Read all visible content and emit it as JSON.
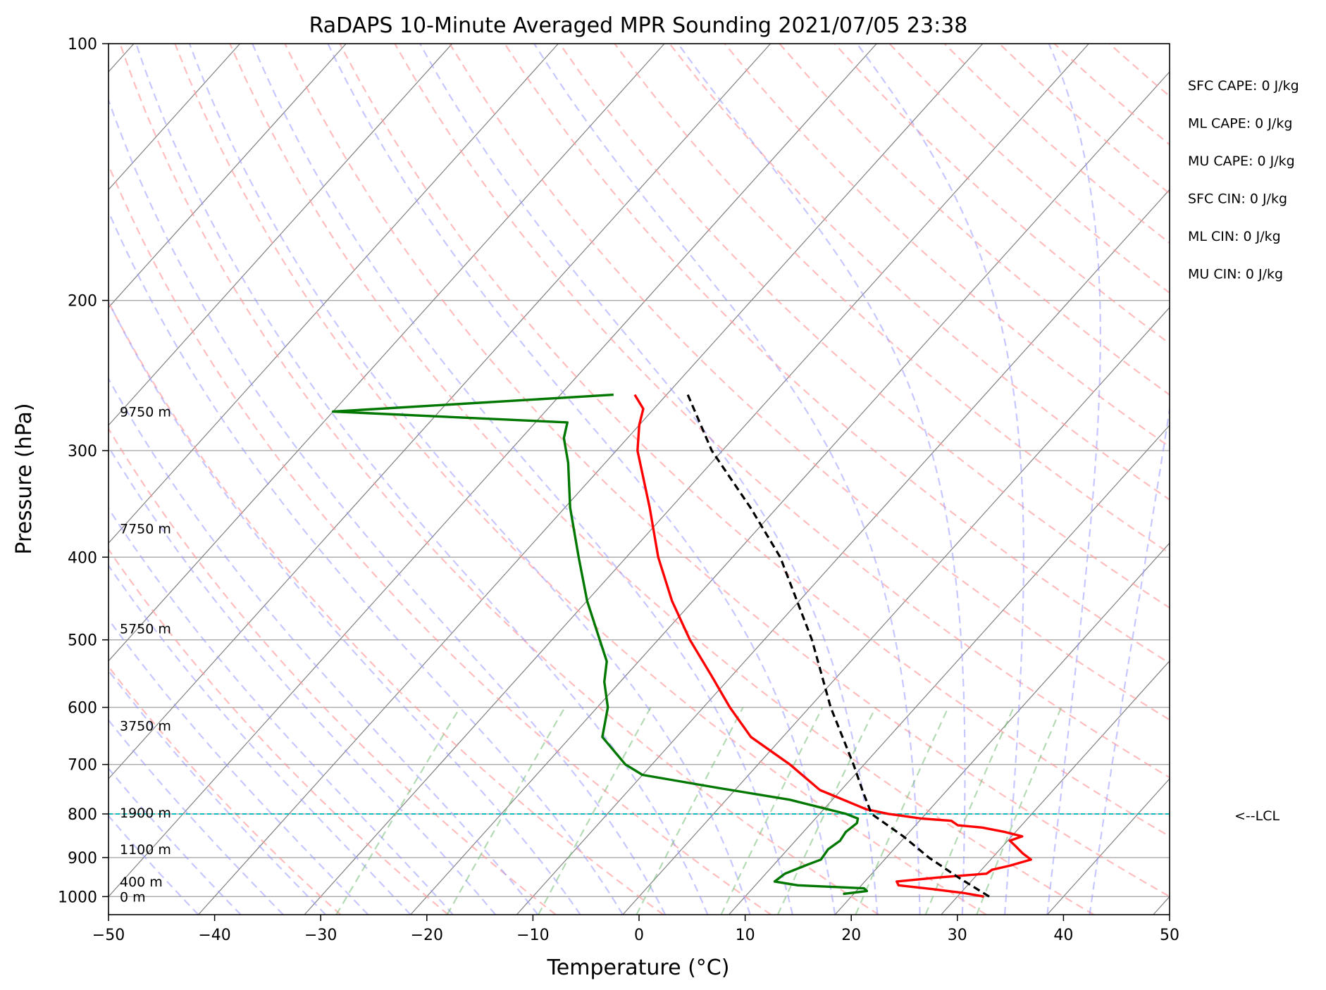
{
  "chart_data": {
    "type": "line",
    "subtype": "skew-T log-p sounding",
    "title": "RaDAPS 10-Minute Averaged MPR Sounding 2021/07/05 23:38",
    "xlabel": "Temperature (°C)",
    "ylabel": "Pressure (hPa)",
    "xlim": [
      -50,
      50
    ],
    "ylim": [
      1050,
      100
    ],
    "y_scale": "log",
    "x_ticks": [
      -50,
      -40,
      -30,
      -20,
      -10,
      0,
      10,
      20,
      30,
      40,
      50
    ],
    "y_ticks": [
      100,
      200,
      300,
      400,
      500,
      600,
      700,
      800,
      900,
      1000
    ],
    "grid": true,
    "height_labels": [
      {
        "text": "9750 m",
        "p": 270
      },
      {
        "text": "7750 m",
        "p": 370
      },
      {
        "text": "5750 m",
        "p": 485
      },
      {
        "text": "3750 m",
        "p": 630
      },
      {
        "text": "1900 m",
        "p": 797
      },
      {
        "text": "1100 m",
        "p": 880
      },
      {
        "text": "400 m",
        "p": 960
      },
      {
        "text": "0 m",
        "p": 1000
      }
    ],
    "stats": [
      "SFC CAPE: 0 J/kg",
      "ML CAPE: 0 J/kg",
      "MU CAPE: 0 J/kg",
      "SFC CIN: 0 J/kg",
      "ML CIN: 0 J/kg",
      "MU CIN: 0 J/kg"
    ],
    "lcl": {
      "p": 800,
      "label": "<--LCL"
    },
    "series": [
      {
        "type": "temperature",
        "color": "#ff0000",
        "points": [
          [
            1000,
            32.5
          ],
          [
            990,
            30.2
          ],
          [
            980,
            27.0
          ],
          [
            970,
            23.5
          ],
          [
            960,
            23.0
          ],
          [
            950,
            26.5
          ],
          [
            940,
            30.8
          ],
          [
            930,
            31.0
          ],
          [
            920,
            32.3
          ],
          [
            905,
            33.8
          ],
          [
            890,
            32.5
          ],
          [
            870,
            31.0
          ],
          [
            860,
            30.2
          ],
          [
            850,
            31.0
          ],
          [
            840,
            29.0
          ],
          [
            830,
            26.5
          ],
          [
            825,
            24.0
          ],
          [
            815,
            23.0
          ],
          [
            810,
            20.0
          ],
          [
            800,
            16.5
          ],
          [
            790,
            14.0
          ],
          [
            750,
            8.0
          ],
          [
            700,
            3.0
          ],
          [
            650,
            -3.0
          ],
          [
            600,
            -7.5
          ],
          [
            550,
            -12.0
          ],
          [
            500,
            -17.0
          ],
          [
            450,
            -22.0
          ],
          [
            400,
            -27.0
          ],
          [
            350,
            -32.0
          ],
          [
            300,
            -38.0
          ],
          [
            280,
            -40.0
          ],
          [
            268,
            -41.0
          ],
          [
            258,
            -43.0
          ]
        ]
      },
      {
        "type": "dewpoint",
        "color": "#007700",
        "points": [
          [
            993,
            19.0
          ],
          [
            985,
            21.0
          ],
          [
            978,
            20.5
          ],
          [
            970,
            14.0
          ],
          [
            960,
            11.5
          ],
          [
            940,
            11.8
          ],
          [
            920,
            13.0
          ],
          [
            905,
            14.0
          ],
          [
            880,
            13.8
          ],
          [
            860,
            14.2
          ],
          [
            840,
            14.0
          ],
          [
            820,
            14.3
          ],
          [
            810,
            14.0
          ],
          [
            800,
            12.5
          ],
          [
            770,
            6.0
          ],
          [
            745,
            -2.0
          ],
          [
            720,
            -10.0
          ],
          [
            700,
            -12.5
          ],
          [
            650,
            -17.0
          ],
          [
            600,
            -19.0
          ],
          [
            560,
            -21.5
          ],
          [
            530,
            -23.0
          ],
          [
            500,
            -25.5
          ],
          [
            450,
            -30.0
          ],
          [
            400,
            -34.5
          ],
          [
            350,
            -39.5
          ],
          [
            310,
            -43.5
          ],
          [
            290,
            -46.0
          ],
          [
            278,
            -47.0
          ],
          [
            270,
            -70.0
          ],
          [
            258,
            -45.0
          ]
        ]
      },
      {
        "type": "parcel",
        "color": "#000000",
        "points": [
          [
            1000,
            33.0
          ],
          [
            950,
            28.5
          ],
          [
            900,
            24.0
          ],
          [
            850,
            19.8
          ],
          [
            800,
            14.9
          ],
          [
            750,
            12.0
          ],
          [
            700,
            9.0
          ],
          [
            600,
            2.0
          ],
          [
            500,
            -5.5
          ],
          [
            400,
            -15.5
          ],
          [
            350,
            -22.5
          ],
          [
            300,
            -31.0
          ],
          [
            258,
            -38.0
          ]
        ]
      }
    ],
    "colors": {
      "dry_adiabat": "#ff9999",
      "moist_adiabat": "#9999ff",
      "mixing_ratio": "#77bb77",
      "isotherm": "#808080",
      "isobar": "#a9a9a9",
      "lcl_line": "#00bbbb"
    }
  }
}
